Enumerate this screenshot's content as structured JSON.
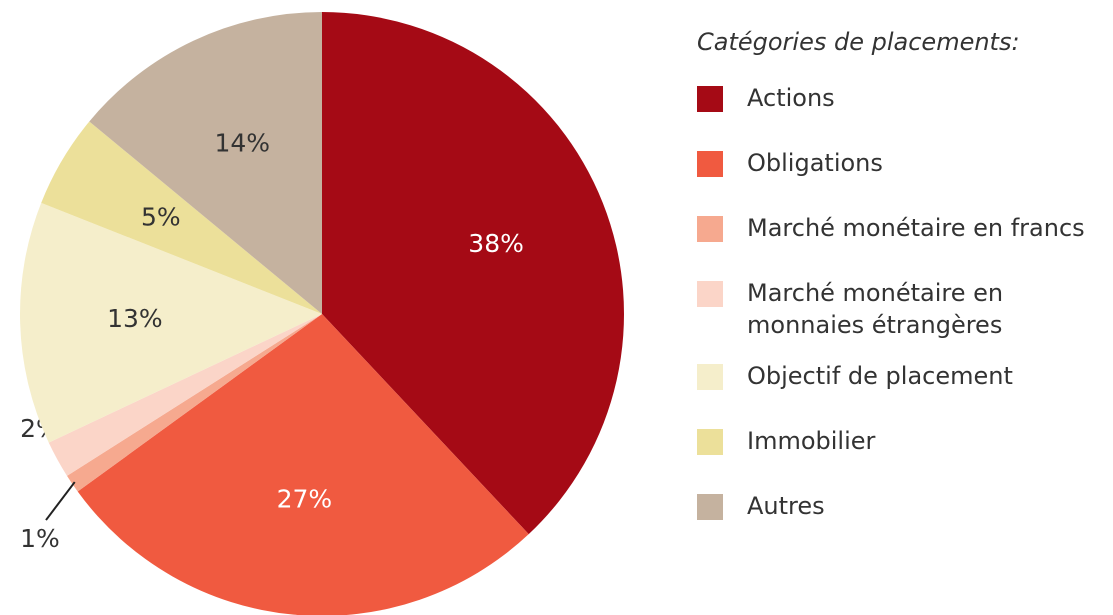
{
  "chart_data": {
    "type": "pie",
    "legend_title": "Catégories de placements:",
    "categories": [
      "Actions",
      "Obligations",
      "Marché monétaire en francs",
      "Marché monétaire en monnaies étrangères",
      "Objectif de placement",
      "Immobilier",
      "Autres"
    ],
    "values": [
      38,
      27,
      1,
      2,
      13,
      5,
      14
    ],
    "value_labels": [
      "38%",
      "27%",
      "1%",
      "2%",
      "13%",
      "5%",
      "14%"
    ],
    "colors": [
      "#a50a15",
      "#f05a40",
      "#f6a98f",
      "#fbd5c8",
      "#f5eecb",
      "#ece09a",
      "#c5b29f"
    ],
    "legend": "right"
  }
}
